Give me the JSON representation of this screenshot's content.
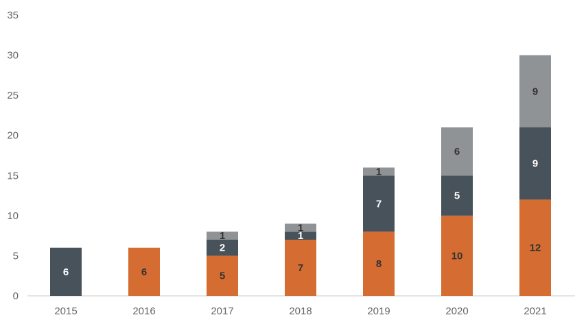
{
  "chart_data": {
    "type": "bar",
    "stacked": true,
    "title": "",
    "xlabel": "",
    "ylabel": "",
    "categories": [
      "2015",
      "2016",
      "2017",
      "2018",
      "2019",
      "2020",
      "2021"
    ],
    "ylim": [
      0,
      35
    ],
    "yticks": [
      "0",
      "5",
      "10",
      "15",
      "20",
      "25",
      "30",
      "35"
    ],
    "grid": false,
    "legend": "none",
    "series": [
      {
        "name": "orange",
        "color": "#D56D33",
        "label_color": "#333333",
        "values": [
          0,
          6,
          5,
          7,
          8,
          10,
          12
        ]
      },
      {
        "name": "dark gray",
        "color": "#48525A",
        "label_color": "#ffffff",
        "values": [
          6,
          0,
          2,
          1,
          7,
          5,
          9
        ]
      },
      {
        "name": "light gray",
        "color": "#8F9396",
        "label_color": "#333333",
        "values": [
          0,
          0,
          1,
          1,
          1,
          6,
          9
        ]
      }
    ]
  }
}
